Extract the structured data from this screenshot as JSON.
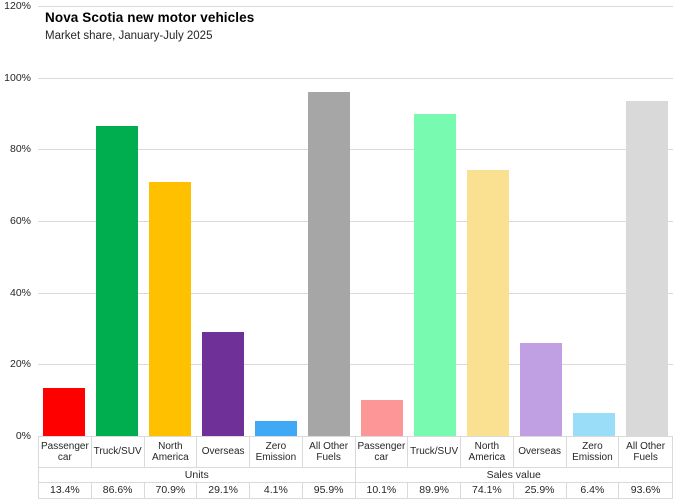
{
  "title": "Nova Scotia new motor vehicles",
  "subtitle": "Market share, January-July 2025",
  "y_axis": {
    "ticks": [
      "120%",
      "100%",
      "80%",
      "60%",
      "40%",
      "20%",
      "0%"
    ]
  },
  "colors": {
    "gridline": "#d9d9d9",
    "table_border": "#d9d9d9",
    "text": "#262626"
  },
  "chart_data": {
    "type": "bar",
    "title": "Nova Scotia new motor vehicles",
    "subtitle": "Market share, January-July 2025",
    "xlabel": "",
    "ylabel": "",
    "unit": "%",
    "ylim": [
      0,
      120
    ],
    "y_tick_step": 20,
    "grid": true,
    "legend": "none",
    "groups": [
      {
        "label": "Units",
        "bars": [
          {
            "category": "Passenger car",
            "value": 13.4,
            "display": "13.4%",
            "color": "#ff0000"
          },
          {
            "category": "Truck/SUV",
            "value": 86.6,
            "display": "86.6%",
            "color": "#00ad4f"
          },
          {
            "category": "North America",
            "value": 70.9,
            "display": "70.9%",
            "color": "#ffc000"
          },
          {
            "category": "Overseas",
            "value": 29.1,
            "display": "29.1%",
            "color": "#6f3198"
          },
          {
            "category": "Zero Emission",
            "value": 4.1,
            "display": "4.1%",
            "color": "#3fa9f5"
          },
          {
            "category": "All Other Fuels",
            "value": 95.9,
            "display": "95.9%",
            "color": "#a6a6a6"
          }
        ]
      },
      {
        "label": "Sales value",
        "bars": [
          {
            "category": "Passenger car",
            "value": 10.1,
            "display": "10.1%",
            "color": "#fc9697"
          },
          {
            "category": "Truck/SUV",
            "value": 89.9,
            "display": "89.9%",
            "color": "#79fab1"
          },
          {
            "category": "North America",
            "value": 74.1,
            "display": "74.1%",
            "color": "#fae191"
          },
          {
            "category": "Overseas",
            "value": 25.9,
            "display": "25.9%",
            "color": "#c09fe2"
          },
          {
            "category": "Zero Emission",
            "value": 6.4,
            "display": "6.4%",
            "color": "#99ddf9"
          },
          {
            "category": "All Other Fuels",
            "value": 93.6,
            "display": "93.6%",
            "color": "#d9d9d9"
          }
        ]
      }
    ]
  }
}
